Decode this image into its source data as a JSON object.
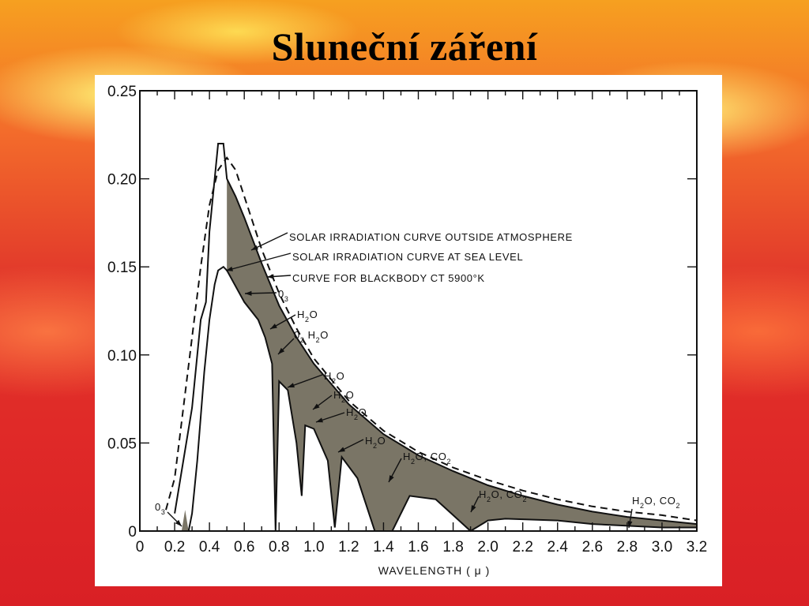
{
  "slide": {
    "title": "Sluneční záření"
  },
  "chart_data": {
    "type": "line",
    "xlabel": "WAVELENGTH ( μ )",
    "ylabel": "",
    "xlim": [
      0,
      3.2
    ],
    "ylim": [
      0,
      0.25
    ],
    "x_ticks": [
      "0",
      "0.2",
      "0.4",
      "0.6",
      "0.8",
      "1.0",
      "1.2",
      "1.4",
      "1.6",
      "1.8",
      "2.0",
      "2.2",
      "2.4",
      "2.6",
      "2.8",
      "3.0",
      "3.2"
    ],
    "y_ticks": [
      "0",
      "0.05",
      "0.10",
      "0.15",
      "0.20",
      "0.25"
    ],
    "series": [
      {
        "name": "SOLAR IRRADIATION CURVE OUTSIDE ATMOSPHERE",
        "style": "solid",
        "points": [
          [
            0.2,
            0.01
          ],
          [
            0.25,
            0.04
          ],
          [
            0.3,
            0.07
          ],
          [
            0.35,
            0.12
          ],
          [
            0.38,
            0.13
          ],
          [
            0.4,
            0.17
          ],
          [
            0.43,
            0.2
          ],
          [
            0.45,
            0.22
          ],
          [
            0.48,
            0.22
          ],
          [
            0.5,
            0.2
          ],
          [
            0.55,
            0.19
          ],
          [
            0.6,
            0.178
          ],
          [
            0.7,
            0.152
          ],
          [
            0.8,
            0.128
          ],
          [
            0.9,
            0.11
          ],
          [
            1.0,
            0.095
          ],
          [
            1.2,
            0.072
          ],
          [
            1.4,
            0.055
          ],
          [
            1.6,
            0.043
          ],
          [
            1.8,
            0.034
          ],
          [
            2.0,
            0.026
          ],
          [
            2.2,
            0.02
          ],
          [
            2.4,
            0.015
          ],
          [
            2.6,
            0.011
          ],
          [
            2.8,
            0.008
          ],
          [
            3.0,
            0.006
          ],
          [
            3.2,
            0.004
          ]
        ]
      },
      {
        "name": "CURVE FOR BLACKBODY CT 5900°K",
        "style": "dashed",
        "points": [
          [
            0.15,
            0.012
          ],
          [
            0.2,
            0.03
          ],
          [
            0.25,
            0.07
          ],
          [
            0.3,
            0.11
          ],
          [
            0.35,
            0.15
          ],
          [
            0.4,
            0.185
          ],
          [
            0.45,
            0.205
          ],
          [
            0.5,
            0.212
          ],
          [
            0.55,
            0.205
          ],
          [
            0.6,
            0.19
          ],
          [
            0.7,
            0.16
          ],
          [
            0.8,
            0.135
          ],
          [
            0.9,
            0.115
          ],
          [
            1.0,
            0.098
          ],
          [
            1.2,
            0.074
          ],
          [
            1.4,
            0.057
          ],
          [
            1.6,
            0.045
          ],
          [
            1.8,
            0.036
          ],
          [
            2.0,
            0.029
          ],
          [
            2.2,
            0.023
          ],
          [
            2.4,
            0.018
          ],
          [
            2.6,
            0.014
          ],
          [
            2.8,
            0.011
          ],
          [
            3.0,
            0.009
          ],
          [
            3.2,
            0.006
          ]
        ]
      },
      {
        "name": "SOLAR IRRADIATION CURVE AT SEA LEVEL",
        "style": "solid",
        "points": [
          [
            0.28,
            0.0
          ],
          [
            0.3,
            0.01
          ],
          [
            0.33,
            0.04
          ],
          [
            0.37,
            0.09
          ],
          [
            0.4,
            0.12
          ],
          [
            0.43,
            0.14
          ],
          [
            0.45,
            0.148
          ],
          [
            0.48,
            0.15
          ],
          [
            0.5,
            0.148
          ],
          [
            0.6,
            0.13
          ],
          [
            0.68,
            0.12
          ],
          [
            0.72,
            0.11
          ],
          [
            0.76,
            0.095
          ],
          [
            0.78,
            0.0
          ],
          [
            0.8,
            0.085
          ],
          [
            0.85,
            0.08
          ],
          [
            0.9,
            0.05
          ],
          [
            0.93,
            0.02
          ],
          [
            0.95,
            0.06
          ],
          [
            1.0,
            0.058
          ],
          [
            1.08,
            0.04
          ],
          [
            1.12,
            0.002
          ],
          [
            1.16,
            0.042
          ],
          [
            1.25,
            0.03
          ],
          [
            1.35,
            0.0
          ],
          [
            1.45,
            0.0
          ],
          [
            1.55,
            0.02
          ],
          [
            1.7,
            0.018
          ],
          [
            1.8,
            0.009
          ],
          [
            1.9,
            0.0
          ],
          [
            2.0,
            0.006
          ],
          [
            2.1,
            0.007
          ],
          [
            2.4,
            0.006
          ],
          [
            2.6,
            0.004
          ],
          [
            3.0,
            0.002
          ],
          [
            3.2,
            0.002
          ]
        ]
      }
    ],
    "annotations": [
      {
        "text": "SOLAR IRRADIATION CURVE OUTSIDE ATMOSPHERE"
      },
      {
        "text": "SOLAR IRRADIATION CURVE AT SEA LEVEL"
      },
      {
        "text": "CURVE FOR BLACKBODY CT 5900°K"
      },
      {
        "text": "0",
        "sub": "3"
      },
      {
        "text": "H",
        "sub": "2",
        "tail": "O"
      },
      {
        "text": "0",
        "sub": "2",
        "tail": "H",
        "sub2": "2",
        "tail2": "O"
      },
      {
        "text": "H",
        "sub": "2",
        "tail": "O"
      },
      {
        "text": "H",
        "sub": "2",
        "tail": "O"
      },
      {
        "text": "H",
        "sub": "2",
        "tail": "O"
      },
      {
        "text": "H",
        "sub": "2",
        "tail": "O"
      },
      {
        "text": "H",
        "sub": "2",
        "tail": "O, CO",
        "sub2": "2"
      },
      {
        "text": "H",
        "sub": "2",
        "tail": "O, CO",
        "sub2": "2"
      },
      {
        "text": "H",
        "sub": "2",
        "tail": "O, CO",
        "sub2": "2"
      },
      {
        "text": "0",
        "sub": "3"
      }
    ],
    "colors": {
      "shading": "#7a7566",
      "line": "#111111"
    }
  }
}
